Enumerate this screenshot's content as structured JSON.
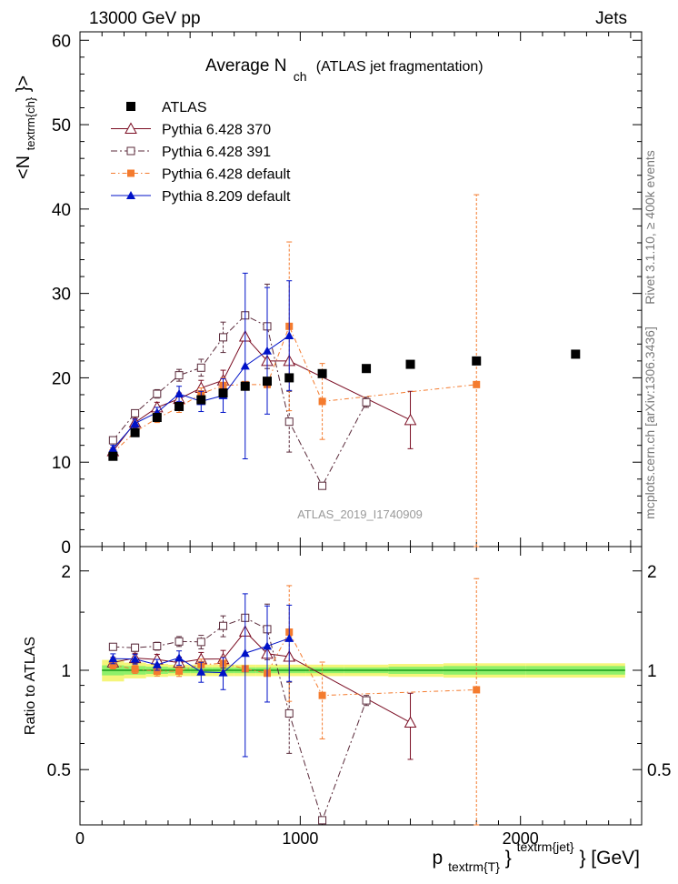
{
  "header": {
    "left": "13000 GeV pp",
    "right": "Jets"
  },
  "side_labels": {
    "rivet": "Rivet 3.1.10, ≥ 400k events",
    "mcplots": "mcplots.cern.ch [arXiv:1306.3436]"
  },
  "watermark": "ATLAS_2019_I1740909",
  "chart_data": {
    "type": "scatter",
    "title": {
      "main": "Average N",
      "sub": "ch",
      "rest": "(ATLAS jet fragmentation)"
    },
    "xlabel": {
      "p": "p",
      "sub": "textrm{T}",
      "sup": "textrm{jet}",
      "tail": "} [GeV]"
    },
    "ylabel": {
      "pre": "<N",
      "sub": "textrm{ch}",
      "post": "}>"
    },
    "ratio_ylabel": "Ratio to ATLAS",
    "xlim": [
      0,
      2550
    ],
    "ylim": [
      0,
      61
    ],
    "ratio_ylim": [
      0.34,
      2.37
    ],
    "x_ticks": [
      0,
      1000,
      2000
    ],
    "x_tick_labels": [
      "0",
      "1000",
      "2000"
    ],
    "y_ticks": [
      0,
      10,
      20,
      30,
      40,
      50,
      60
    ],
    "y_tick_labels": [
      "0",
      "10",
      "20",
      "30",
      "40",
      "50",
      "60"
    ],
    "ratio_ticks": [
      0.5,
      1,
      2
    ],
    "ratio_tick_labels": [
      "0.5",
      "1",
      "2"
    ],
    "reference": {
      "name": "ATLAS",
      "x": [
        150,
        250,
        350,
        450,
        550,
        650,
        750,
        850,
        950,
        1100,
        1300,
        1500,
        1800,
        2250
      ],
      "y": [
        10.7,
        13.5,
        15.3,
        16.6,
        17.4,
        18.2,
        19.0,
        19.6,
        20.0,
        20.5,
        21.1,
        21.6,
        22.0,
        22.8
      ],
      "band_inner": [
        0.035,
        0.03,
        0.025,
        0.02,
        0.02,
        0.02,
        0.02,
        0.02,
        0.02,
        0.02,
        0.02,
        0.025,
        0.03,
        0.03
      ],
      "band_outer": [
        0.075,
        0.055,
        0.045,
        0.04,
        0.04,
        0.04,
        0.04,
        0.04,
        0.04,
        0.04,
        0.04,
        0.045,
        0.05,
        0.05
      ]
    },
    "series": [
      {
        "name": "Pythia 6.428 370",
        "color": "#7a0c22",
        "marker": "triangle-open",
        "dash": "",
        "x": [
          150,
          250,
          350,
          450,
          550,
          650,
          750,
          850,
          950,
          1500
        ],
        "y": [
          11.3,
          14.7,
          16.5,
          17.5,
          18.8,
          19.7,
          24.9,
          22.0,
          22.0,
          15.0
        ],
        "err": [
          0.4,
          0.5,
          0.6,
          0.7,
          0.9,
          1.2,
          0.0,
          0.0,
          0.0,
          3.4
        ]
      },
      {
        "name": "Pythia 6.428 391",
        "color": "#5a2a3a",
        "marker": "square-open",
        "dash": "7,3,2,3",
        "x": [
          150,
          250,
          350,
          450,
          550,
          650,
          750,
          850,
          950,
          1100,
          1300
        ],
        "y": [
          12.6,
          15.8,
          18.1,
          20.3,
          21.2,
          24.8,
          27.4,
          26.1,
          14.8,
          7.2,
          17.1
        ],
        "err": [
          0.3,
          0.4,
          0.5,
          0.7,
          1.0,
          1.8,
          0.0,
          5.0,
          3.6,
          0.0,
          0.6
        ]
      },
      {
        "name": "Pythia 6.428 default",
        "color": "#f47b2e",
        "marker": "square-filled",
        "dash": "5,3,1.5,3",
        "x": [
          150,
          250,
          350,
          450,
          550,
          650,
          750,
          850,
          950,
          1100,
          1800
        ],
        "y": [
          11.1,
          13.6,
          15.2,
          16.5,
          18.1,
          19.1,
          19.2,
          19.2,
          26.1,
          17.2,
          19.2
        ],
        "err": [
          0.3,
          0.4,
          0.5,
          0.6,
          0.7,
          0.9,
          0.0,
          0.0,
          10.0,
          4.5,
          22.5
        ]
      },
      {
        "name": "Pythia 8.209 default",
        "color": "#0012c8",
        "marker": "triangle-filled",
        "dash": "",
        "x": [
          150,
          250,
          350,
          450,
          550,
          650,
          750,
          850,
          950
        ],
        "y": [
          11.6,
          14.6,
          15.9,
          18.1,
          17.2,
          17.9,
          21.4,
          23.2,
          25.0
        ],
        "err": [
          0.4,
          0.5,
          0.6,
          0.9,
          1.2,
          2.0,
          11.0,
          7.5,
          6.5
        ]
      }
    ]
  }
}
